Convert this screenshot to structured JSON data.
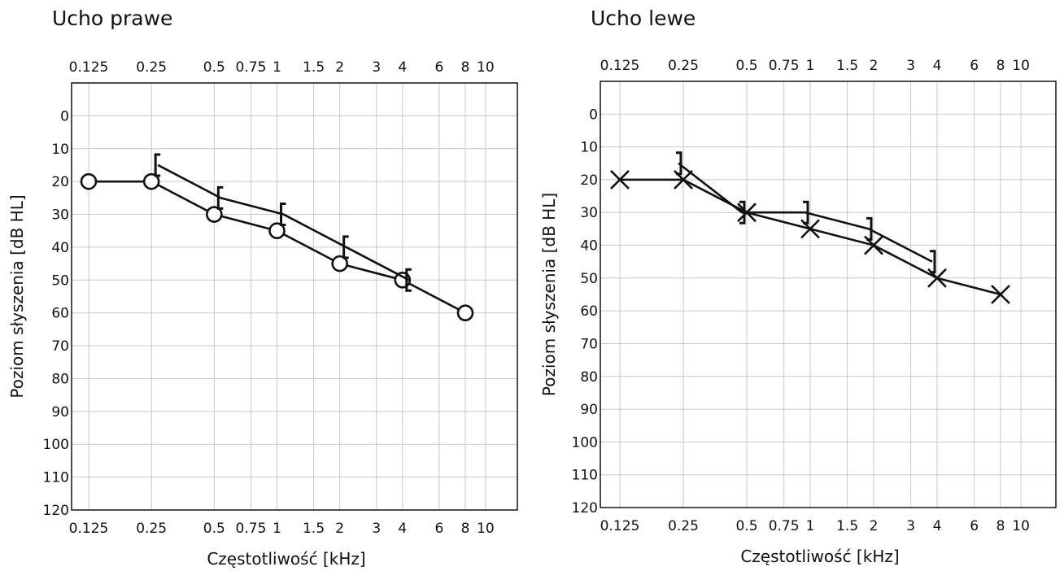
{
  "chart_data": [
    {
      "type": "line",
      "title": "Ucho prawe",
      "xlabel": "Częstotliwość [kHz]",
      "ylabel": "Poziom słyszenia [dB HL]",
      "x_scale": "log",
      "x_ticks": [
        0.125,
        0.25,
        0.5,
        0.75,
        1,
        1.5,
        2,
        3,
        4,
        6,
        8,
        10
      ],
      "x_tick_labels": [
        "0.125",
        "0.25",
        "0.5",
        "0.75",
        "1",
        "1.5",
        "2",
        "3",
        "4",
        "6",
        "8",
        "10"
      ],
      "y_ticks": [
        0,
        10,
        20,
        30,
        40,
        50,
        60,
        70,
        80,
        90,
        100,
        110,
        120
      ],
      "y_tick_labels": [
        "0",
        "10",
        "20",
        "30",
        "40",
        "50",
        "60",
        "70",
        "80",
        "90",
        "100",
        "110",
        "120"
      ],
      "ylim": [
        -10,
        120
      ],
      "y_inverted": true,
      "grid": true,
      "series": [
        {
          "marker": "circle",
          "x": [
            0.125,
            0.25,
            0.5,
            1,
            2,
            4,
            8
          ],
          "y": [
            20,
            20,
            30,
            35,
            45,
            50,
            60
          ]
        },
        {
          "marker": "bracket-left",
          "x": [
            0.25,
            0.5,
            1,
            2,
            4
          ],
          "y": [
            15,
            25,
            30,
            40,
            50
          ]
        }
      ]
    },
    {
      "type": "line",
      "title": "Ucho lewe",
      "xlabel": "Częstotliwość [kHz]",
      "ylabel": "Poziom słyszenia [dB HL]",
      "x_scale": "log",
      "x_ticks": [
        0.125,
        0.25,
        0.5,
        0.75,
        1,
        1.5,
        2,
        3,
        4,
        6,
        8,
        10
      ],
      "x_tick_labels": [
        "0.125",
        "0.25",
        "0.5",
        "0.75",
        "1",
        "1.5",
        "2",
        "3",
        "4",
        "6",
        "8",
        "10"
      ],
      "y_ticks": [
        0,
        10,
        20,
        30,
        40,
        50,
        60,
        70,
        80,
        90,
        100,
        110,
        120
      ],
      "y_tick_labels": [
        "0",
        "10",
        "20",
        "30",
        "40",
        "50",
        "60",
        "70",
        "80",
        "90",
        "100",
        "110",
        "120"
      ],
      "ylim": [
        -10,
        120
      ],
      "y_inverted": true,
      "grid": true,
      "series": [
        {
          "marker": "cross",
          "x": [
            0.125,
            0.25,
            0.5,
            1,
            2,
            4,
            8
          ],
          "y": [
            20,
            20,
            30,
            35,
            40,
            50,
            55
          ]
        },
        {
          "marker": "bracket-right",
          "x": [
            0.25,
            0.5,
            1,
            2,
            4
          ],
          "y": [
            15,
            30,
            30,
            35,
            45
          ]
        }
      ]
    }
  ],
  "colors": {
    "line": "#111111",
    "grid": "#c8c8c8",
    "frame": "#222222",
    "background": "#ffffff"
  }
}
